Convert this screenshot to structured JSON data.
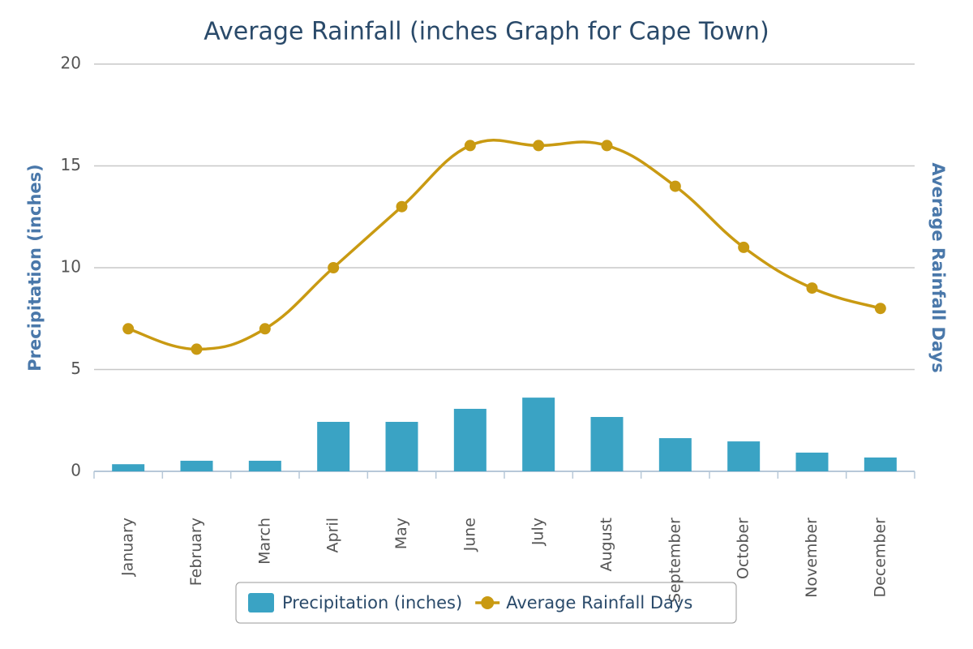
{
  "chart_data": {
    "type": "bar-line",
    "title": "Average Rainfall (inches Graph for Cape Town)",
    "y_label": "Precipitation (inches)",
    "y2_label": "Average Rainfall Days",
    "categories": [
      "January",
      "February",
      "March",
      "April",
      "May",
      "June",
      "July",
      "August",
      "September",
      "October",
      "November",
      "December"
    ],
    "series": [
      {
        "name": "Precipitation (inches)",
        "type": "bar",
        "color": "#3aa3c4",
        "values": [
          0.35,
          0.52,
          0.52,
          2.43,
          2.43,
          3.07,
          3.62,
          2.67,
          1.63,
          1.47,
          0.92,
          0.68
        ]
      },
      {
        "name": "Average Rainfall Days",
        "type": "line",
        "color": "#c99a12",
        "values": [
          7,
          6,
          7,
          10,
          13,
          16,
          16,
          16,
          14,
          11,
          9,
          8
        ]
      }
    ],
    "ylim": [
      0,
      20
    ],
    "yticks": [
      0,
      5,
      10,
      15,
      20
    ],
    "grid": true,
    "legend": "bottom"
  }
}
